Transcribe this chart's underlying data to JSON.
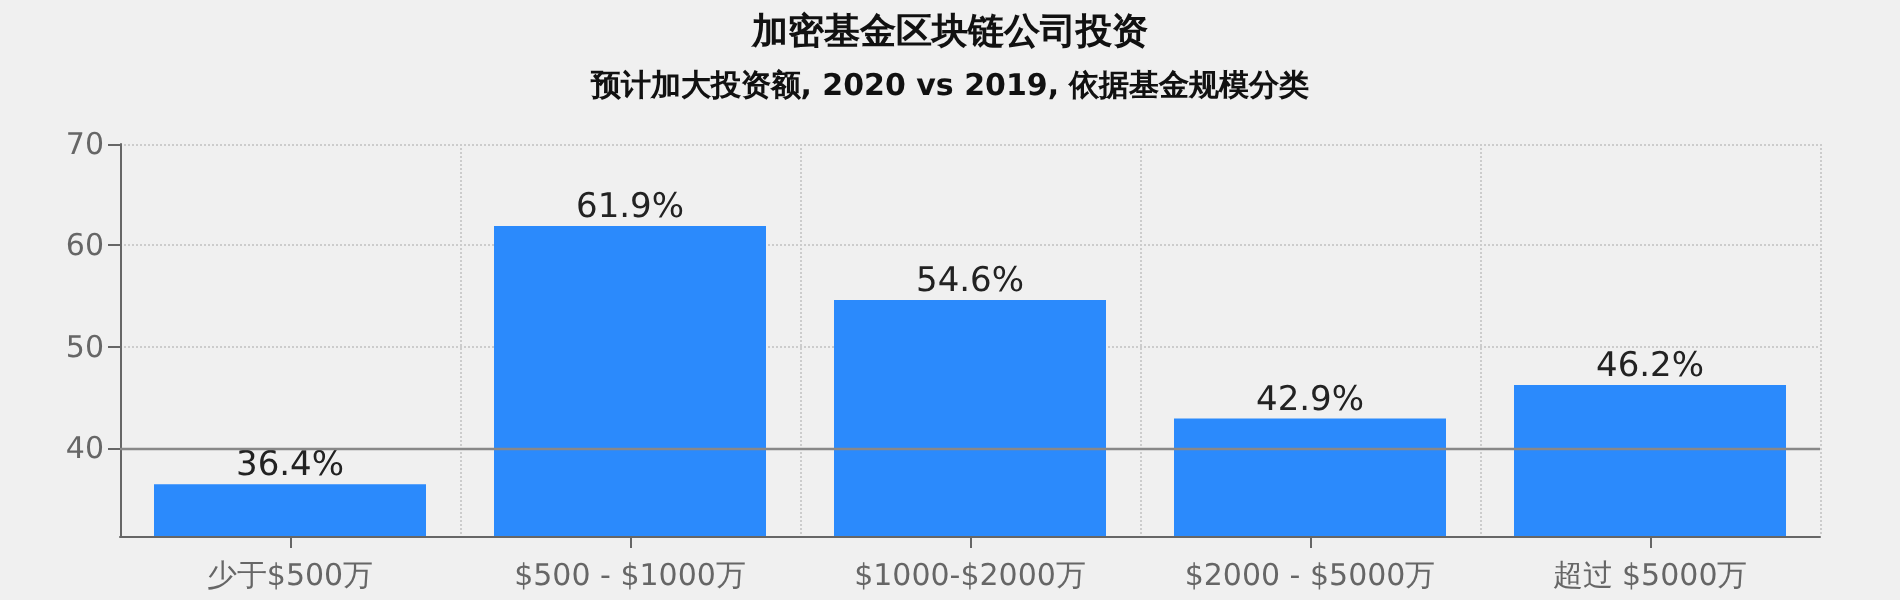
{
  "chart_data": {
    "type": "bar",
    "title": "加密基金区块链公司投资",
    "subtitle": "预计加大投资额, 2020 vs 2019, 依据基金规模分类",
    "categories": [
      "少于$500万",
      "$500 - $1000万",
      "$1000-$2000万",
      "$2000 - $5000万",
      "超过 $5000万"
    ],
    "values": [
      36.4,
      61.9,
      54.6,
      42.9,
      46.2
    ],
    "value_labels": [
      "36.4%",
      "61.9%",
      "54.6%",
      "42.9%",
      "46.2%"
    ],
    "color": "#2b8afc",
    "ylim": [
      31.3,
      70
    ],
    "yticks": [
      40,
      50,
      60,
      70
    ],
    "ref_lines": [
      {
        "axis": "y",
        "value": 40,
        "color": "#888888"
      }
    ],
    "grid": true
  }
}
